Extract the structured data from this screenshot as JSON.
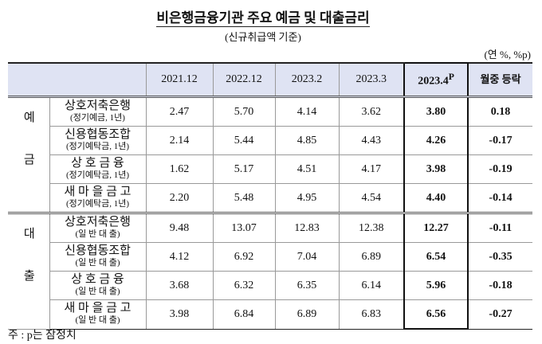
{
  "header": {
    "title": "비은행금융기관 주요 예금 및 대출금리",
    "subtitle": "(신규취급액 기준)",
    "unit": "(연 %, %p)"
  },
  "table": {
    "columns": [
      "2021.12",
      "2022.12",
      "2023.2",
      "2023.3",
      "2023.4",
      "월중 등락"
    ],
    "provisional_mark": "P",
    "groups": [
      {
        "label": "예금",
        "rows": [
          {
            "name": "상호저축은행",
            "note": "(정기예금, 1년)",
            "values": [
              "2.47",
              "5.70",
              "4.14",
              "3.62",
              "3.80",
              "0.18"
            ]
          },
          {
            "name": "신용협동조합",
            "note": "(정기예탁금, 1년)",
            "values": [
              "2.14",
              "5.44",
              "4.85",
              "4.43",
              "4.26",
              "-0.17"
            ]
          },
          {
            "name": "상 호 금 융",
            "note": "(정기예탁금, 1년)",
            "values": [
              "1.62",
              "5.17",
              "4.51",
              "4.17",
              "3.98",
              "-0.19"
            ]
          },
          {
            "name": "새 마 을 금 고",
            "note": "(정기예탁금, 1년)",
            "values": [
              "2.20",
              "5.48",
              "4.95",
              "4.54",
              "4.40",
              "-0.14"
            ]
          }
        ]
      },
      {
        "label": "대출",
        "rows": [
          {
            "name": "상호저축은행",
            "note": "(일 반 대 출)",
            "values": [
              "9.48",
              "13.07",
              "12.83",
              "12.38",
              "12.27",
              "-0.11"
            ]
          },
          {
            "name": "신용협동조합",
            "note": "(일 반 대 출)",
            "values": [
              "4.12",
              "6.92",
              "7.04",
              "6.89",
              "6.54",
              "-0.35"
            ]
          },
          {
            "name": "상 호 금 융",
            "note": "(일 반 대 출)",
            "values": [
              "3.68",
              "6.32",
              "6.35",
              "6.14",
              "5.96",
              "-0.18"
            ]
          },
          {
            "name": "새 마 을 금 고",
            "note": "(일 반 대 출)",
            "values": [
              "3.98",
              "6.84",
              "6.89",
              "6.83",
              "6.56",
              "-0.27"
            ]
          }
        ]
      }
    ]
  },
  "footnote": "주 : p는 잠정치"
}
